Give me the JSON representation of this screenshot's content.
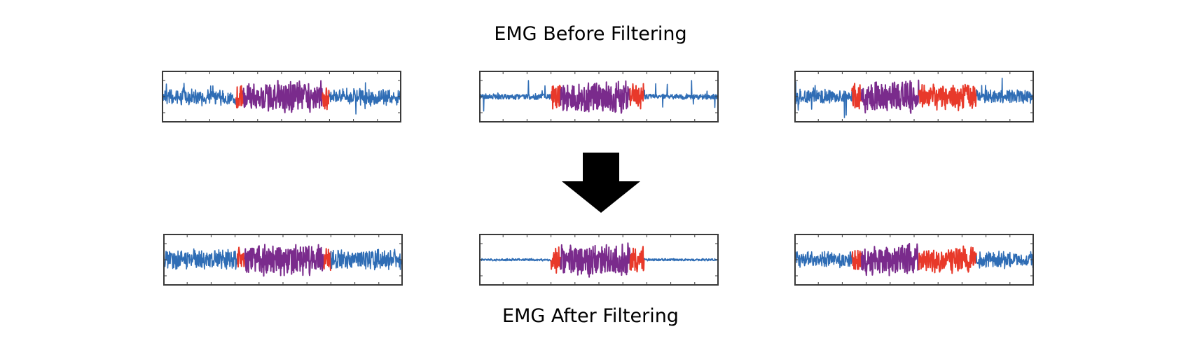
{
  "titles": {
    "before": "EMG Before Filtering",
    "after": "EMG After Filtering"
  },
  "colors": {
    "baseline": "#2f6db5",
    "transition": "#e8392a",
    "active": "#7a2b8c",
    "frame": "#3a3a3a",
    "arrow": "#000000"
  },
  "panels": {
    "before": [
      {
        "segments": [
          [
            "baseline",
            0.31
          ],
          [
            "transition",
            0.34
          ],
          [
            "active",
            0.67
          ],
          [
            "transition",
            0.7
          ],
          [
            "baseline",
            1.0
          ]
        ],
        "baseline_level": 0.35,
        "spikes": "regular"
      },
      {
        "segments": [
          [
            "baseline",
            0.3
          ],
          [
            "transition",
            0.34
          ],
          [
            "active",
            0.63
          ],
          [
            "transition",
            0.69
          ],
          [
            "baseline",
            1.0
          ]
        ],
        "baseline_level": 0.12,
        "spikes": "regular"
      },
      {
        "segments": [
          [
            "baseline",
            0.24
          ],
          [
            "transition",
            0.28
          ],
          [
            "active",
            0.52
          ],
          [
            "transition",
            0.76
          ],
          [
            "baseline",
            1.0
          ]
        ],
        "baseline_level": 0.3,
        "spikes": "irregular"
      }
    ],
    "after": [
      {
        "segments": [
          [
            "baseline",
            0.31
          ],
          [
            "transition",
            0.34
          ],
          [
            "active",
            0.67
          ],
          [
            "transition",
            0.7
          ],
          [
            "baseline",
            1.0
          ]
        ],
        "baseline_level": 0.45,
        "spikes": "none"
      },
      {
        "segments": [
          [
            "baseline",
            0.3
          ],
          [
            "transition",
            0.34
          ],
          [
            "active",
            0.63
          ],
          [
            "transition",
            0.69
          ],
          [
            "baseline",
            1.0
          ]
        ],
        "baseline_level": 0.05,
        "spikes": "none"
      },
      {
        "segments": [
          [
            "baseline",
            0.24
          ],
          [
            "transition",
            0.28
          ],
          [
            "active",
            0.52
          ],
          [
            "transition",
            0.76
          ],
          [
            "baseline",
            1.0
          ]
        ],
        "baseline_level": 0.35,
        "spikes": "none"
      }
    ]
  }
}
